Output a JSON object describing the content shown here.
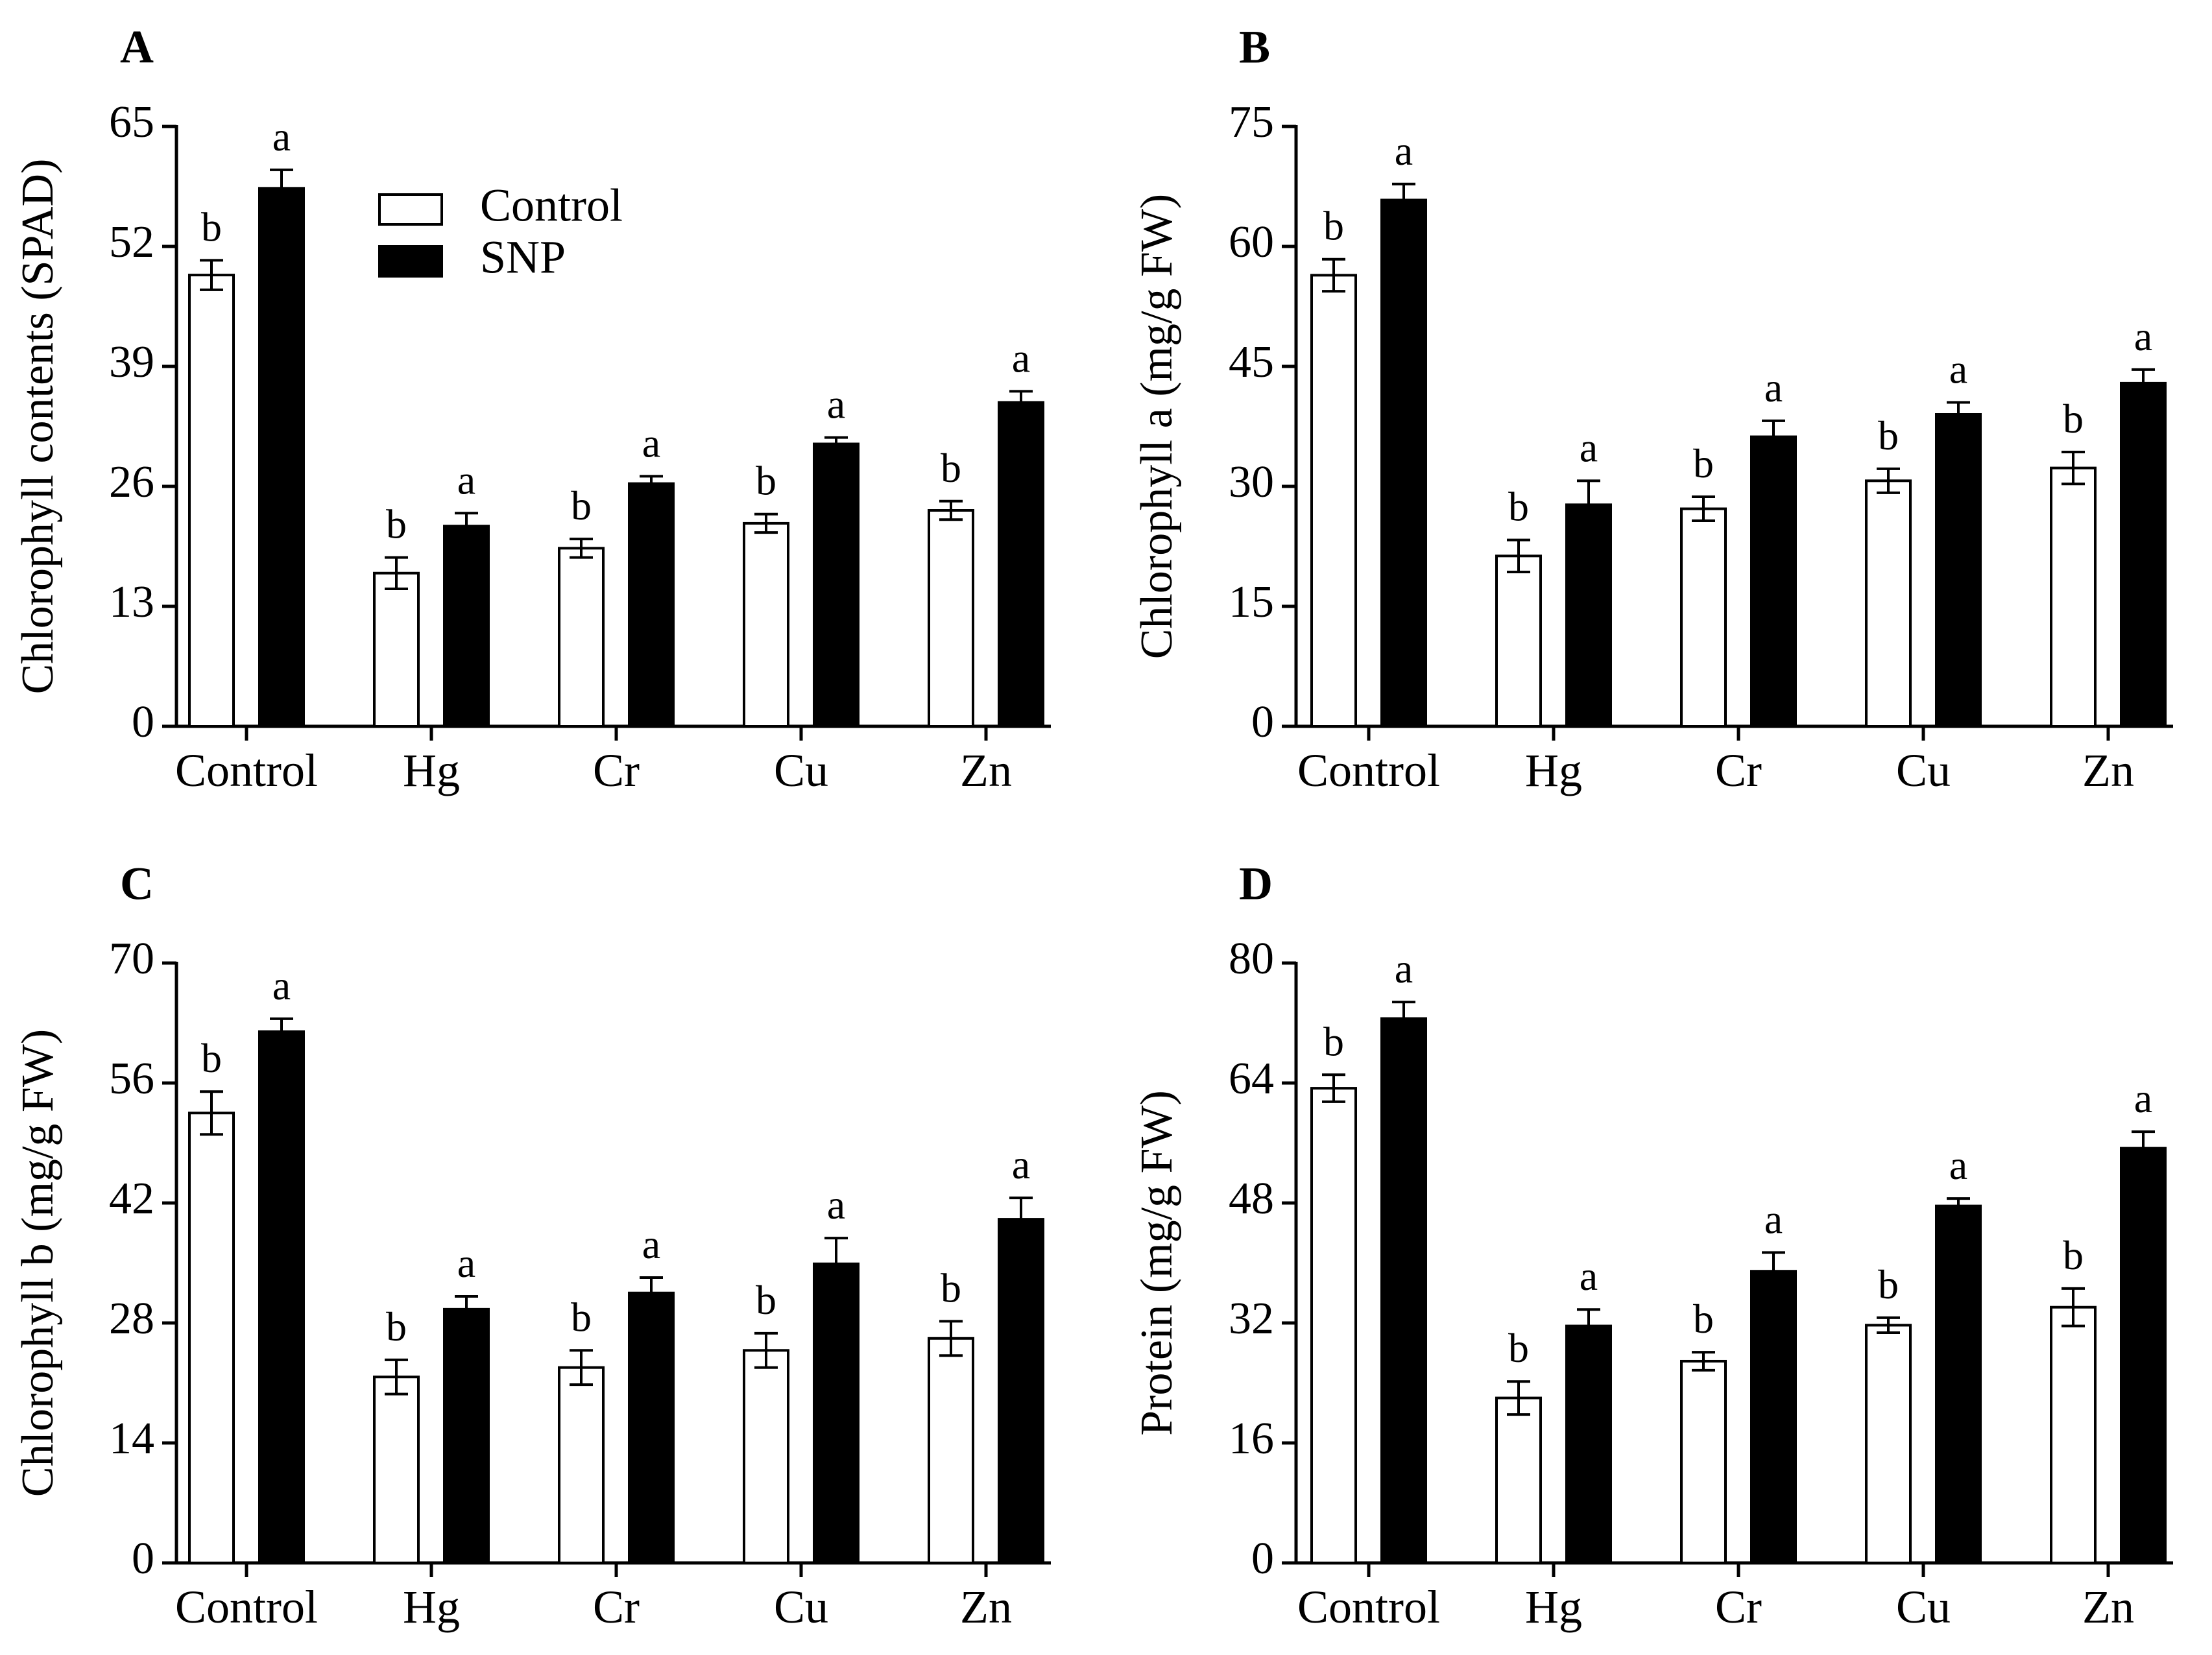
{
  "chart_data": [
    {
      "type": "bar",
      "panel": "A",
      "ylabel": "Chlorophyll contents (SPAD)",
      "ylim": [
        0,
        65
      ],
      "yticks": [
        0,
        13,
        26,
        39,
        52,
        65
      ],
      "categories": [
        "Control",
        "Hg",
        "Cr",
        "Cu",
        "Zn"
      ],
      "legend": {
        "placement": "top-center",
        "entries": [
          "Control",
          "SNP"
        ]
      },
      "series": [
        {
          "name": "Control",
          "fill": "#ffffff",
          "values": [
            48.9,
            16.6,
            19.3,
            22.0,
            23.4
          ],
          "errors": [
            1.6,
            1.7,
            1.0,
            1.0,
            1.0
          ],
          "letters": [
            "b",
            "b",
            "b",
            "b",
            "b"
          ]
        },
        {
          "name": "SNP",
          "fill": "#000000",
          "values": [
            58.3,
            21.7,
            26.3,
            30.6,
            35.1
          ],
          "errors": [
            2.0,
            1.4,
            0.8,
            0.7,
            1.2
          ],
          "letters": [
            "a",
            "a",
            "a",
            "a",
            "a"
          ]
        }
      ]
    },
    {
      "type": "bar",
      "panel": "B",
      "ylabel": "Chlorophyll a (mg/g FW)",
      "ylim": [
        0,
        75
      ],
      "yticks": [
        0,
        15,
        30,
        45,
        60,
        75
      ],
      "categories": [
        "Control",
        "Hg",
        "Cr",
        "Cu",
        "Zn"
      ],
      "series": [
        {
          "name": "Control",
          "fill": "#ffffff",
          "values": [
            56.4,
            21.3,
            27.2,
            30.7,
            32.3
          ],
          "errors": [
            2.0,
            2.0,
            1.5,
            1.5,
            2.0
          ],
          "letters": [
            "b",
            "b",
            "b",
            "b",
            "b"
          ]
        },
        {
          "name": "SNP",
          "fill": "#000000",
          "values": [
            65.8,
            27.7,
            36.2,
            39.0,
            42.9
          ],
          "errors": [
            2.0,
            3.0,
            2.0,
            1.5,
            1.7
          ],
          "letters": [
            "a",
            "a",
            "a",
            "a",
            "a"
          ]
        }
      ]
    },
    {
      "type": "bar",
      "panel": "C",
      "ylabel": "Chlorophyll b (mg/g FW)",
      "ylim": [
        0,
        70
      ],
      "yticks": [
        0,
        14,
        28,
        42,
        56,
        70
      ],
      "categories": [
        "Control",
        "Hg",
        "Cr",
        "Cu",
        "Zn"
      ],
      "series": [
        {
          "name": "Control",
          "fill": "#ffffff",
          "values": [
            52.5,
            21.7,
            22.8,
            24.8,
            26.2
          ],
          "errors": [
            2.5,
            2.0,
            2.0,
            2.0,
            2.0
          ],
          "letters": [
            "b",
            "b",
            "b",
            "b",
            "b"
          ]
        },
        {
          "name": "SNP",
          "fill": "#000000",
          "values": [
            62.0,
            29.6,
            31.5,
            34.9,
            40.1
          ],
          "errors": [
            1.5,
            1.5,
            1.8,
            3.0,
            2.5
          ],
          "letters": [
            "a",
            "a",
            "a",
            "a",
            "a"
          ]
        }
      ]
    },
    {
      "type": "bar",
      "panel": "D",
      "ylabel": "Protein (mg/g FW)",
      "ylim": [
        0,
        80
      ],
      "yticks": [
        0,
        16,
        32,
        48,
        64,
        80
      ],
      "categories": [
        "Control",
        "Hg",
        "Cr",
        "Cu",
        "Zn"
      ],
      "series": [
        {
          "name": "Control",
          "fill": "#ffffff",
          "values": [
            63.3,
            22.0,
            26.9,
            31.7,
            34.1
          ],
          "errors": [
            1.8,
            2.2,
            1.2,
            1.0,
            2.5
          ],
          "letters": [
            "b",
            "b",
            "b",
            "b",
            "b"
          ]
        },
        {
          "name": "SNP",
          "fill": "#000000",
          "values": [
            72.6,
            31.6,
            38.9,
            47.6,
            55.3
          ],
          "errors": [
            2.2,
            2.2,
            2.5,
            1.0,
            2.2
          ],
          "letters": [
            "a",
            "a",
            "a",
            "a",
            "a"
          ]
        }
      ]
    }
  ]
}
